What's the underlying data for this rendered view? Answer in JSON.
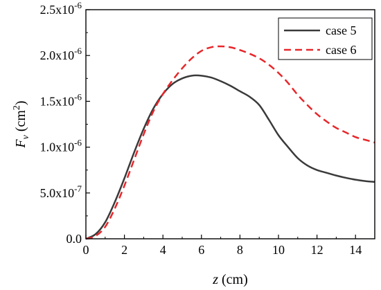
{
  "chart_data": {
    "type": "line",
    "title": "",
    "xlabel": {
      "italic": "z",
      "unit": " (cm)"
    },
    "ylabel": {
      "italic": "F",
      "sub": "v",
      "unit_open": " (cm",
      "unit_sup": "2",
      "unit_close": ")"
    },
    "xlim": [
      0,
      15
    ],
    "ylim": [
      0,
      2.5e-06
    ],
    "x_ticks": [
      0,
      2,
      4,
      6,
      8,
      10,
      12,
      14
    ],
    "x_tick_labels": [
      "0",
      "2",
      "4",
      "6",
      "8",
      "10",
      "12",
      "14"
    ],
    "y_ticks": [
      0,
      5e-07,
      1e-06,
      1.5e-06,
      2e-06,
      2.5e-06
    ],
    "y_tick_labels": [
      {
        "mant": "0.0",
        "exp": ""
      },
      {
        "mant": "5.0x10",
        "exp": "-7"
      },
      {
        "mant": "1.0x10",
        "exp": "-6"
      },
      {
        "mant": "1.5x10",
        "exp": "-6"
      },
      {
        "mant": "2.0x10",
        "exp": "-6"
      },
      {
        "mant": "2.5x10",
        "exp": "-6"
      }
    ],
    "grid": false,
    "legend_position": "top-right",
    "series": [
      {
        "name": "case 5",
        "color": "#3a3a3a",
        "dash": "solid",
        "x": [
          0,
          0.5,
          1,
          1.5,
          2,
          2.5,
          3,
          3.5,
          4,
          4.5,
          5,
          5.5,
          6,
          6.5,
          7,
          7.5,
          8,
          8.5,
          9,
          9.5,
          10,
          10.5,
          11,
          11.5,
          12,
          12.5,
          13,
          13.5,
          14,
          14.5,
          15
        ],
        "y": [
          0,
          5e-08,
          1.8e-07,
          4e-07,
          6.6e-07,
          9.4e-07,
          1.2e-06,
          1.42e-06,
          1.58e-06,
          1.69e-06,
          1.75e-06,
          1.78e-06,
          1.78e-06,
          1.76e-06,
          1.72e-06,
          1.67e-06,
          1.61e-06,
          1.55e-06,
          1.46e-06,
          1.3e-06,
          1.13e-06,
          1e-06,
          8.8e-07,
          8e-07,
          7.5e-07,
          7.2e-07,
          6.9e-07,
          6.65e-07,
          6.45e-07,
          6.3e-07,
          6.2e-07
        ]
      },
      {
        "name": "case 6",
        "color": "#e8262a",
        "dash": "dashed",
        "x": [
          0,
          0.5,
          1,
          1.5,
          2,
          2.5,
          3,
          3.5,
          4,
          4.5,
          5,
          5.5,
          6,
          6.5,
          7,
          7.5,
          8,
          8.5,
          9,
          9.5,
          10,
          10.5,
          11,
          11.5,
          12,
          12.5,
          13,
          13.5,
          14,
          14.5,
          15
        ],
        "y": [
          0,
          3e-08,
          1.3e-07,
          3.3e-07,
          5.8e-07,
          8.6e-07,
          1.14e-06,
          1.39e-06,
          1.58e-06,
          1.73e-06,
          1.86e-06,
          1.97e-06,
          2.05e-06,
          2.09e-06,
          2.1e-06,
          2.09e-06,
          2.06e-06,
          2.02e-06,
          1.97e-06,
          1.9e-06,
          1.81e-06,
          1.7e-06,
          1.57e-06,
          1.46e-06,
          1.36e-06,
          1.28e-06,
          1.21e-06,
          1.16e-06,
          1.11e-06,
          1.08e-06,
          1.05e-06
        ]
      }
    ]
  }
}
